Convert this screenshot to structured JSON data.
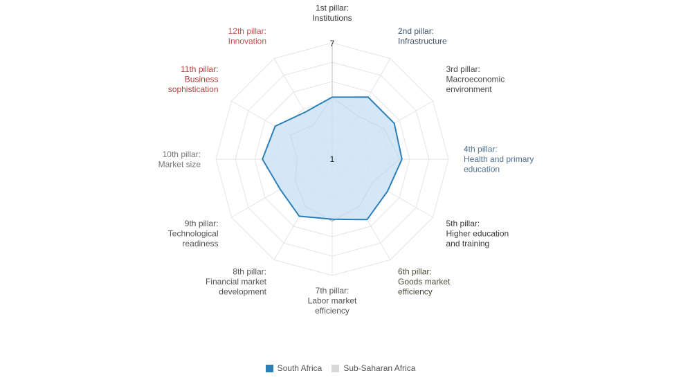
{
  "chart_data": {
    "type": "radar",
    "title": "",
    "axis_max_label": "7",
    "axis_min_label": "1",
    "range": [
      1,
      7
    ],
    "levels": 6,
    "categories": [
      {
        "line1": "1st pillar:",
        "line2": "Institutions",
        "line3": "",
        "color": "#333333"
      },
      {
        "line1": "2nd pillar:",
        "line2": "Infrastructure",
        "line3": "",
        "color": "#3c5166"
      },
      {
        "line1": "3rd pillar:",
        "line2": "Macroeconomic",
        "line3": "environment",
        "color": "#4a4a4a"
      },
      {
        "line1": "4th pillar:",
        "line2": "Health and primary",
        "line3": "education",
        "color": "#4f6f8f"
      },
      {
        "line1": "5th pillar:",
        "line2": "Higher education",
        "line3": "and training",
        "color": "#3a3a3a"
      },
      {
        "line1": "6th pillar:",
        "line2": "Goods market",
        "line3": "efficiency",
        "color": "#4a4a3a"
      },
      {
        "line1": "7th pillar:",
        "line2": "Labor market",
        "line3": "efficiency",
        "color": "#555555"
      },
      {
        "line1": "8th pillar:",
        "line2": "Financial market",
        "line3": "development",
        "color": "#555555"
      },
      {
        "line1": "9th pillar:",
        "line2": "Technological",
        "line3": "readiness",
        "color": "#555555"
      },
      {
        "line1": "10th pillar:",
        "line2": "Market size",
        "line3": "",
        "color": "#777777"
      },
      {
        "line1": "11th pillar:",
        "line2": "Business",
        "line3": "sophistication",
        "color": "#b0413e"
      },
      {
        "line1": "12th pillar:",
        "line2": "Innovation",
        "line3": "",
        "color": "#c0504d"
      }
    ],
    "series": [
      {
        "name": "South Africa",
        "color": "#2a7fb8",
        "fill": "#cde3f4",
        "values": [
          4.2,
          4.7,
          4.7,
          4.6,
          4.3,
          4.6,
          4.1,
          4.4,
          4.1,
          4.6,
          4.4,
          3.8
        ]
      },
      {
        "name": "Sub-Saharan Africa",
        "color": "#aaaaaa",
        "fill": "none",
        "values": [
          4.2,
          3.6,
          4.1,
          4.5,
          3.4,
          3.8,
          4.2,
          3.8,
          3.2,
          2.8,
          3.5,
          3.0
        ]
      }
    ],
    "grid": true,
    "legend_position": "bottom-center"
  }
}
